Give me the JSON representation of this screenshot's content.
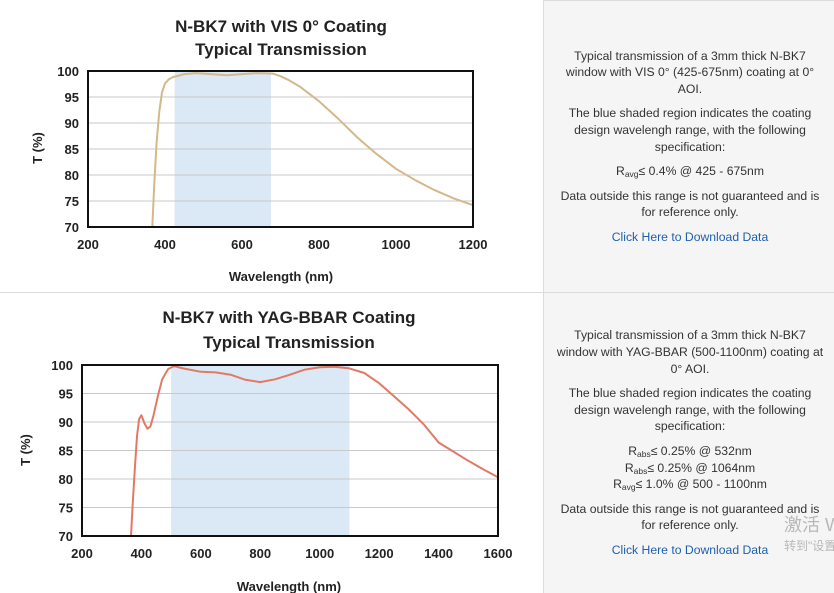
{
  "colors": {
    "band": "#dbe8f5",
    "grid": "#c9c9c9",
    "frame": "#111111",
    "link": "#1f5fb0",
    "vis_curve": "#d5b88a",
    "yag_curve": "#e07a66"
  },
  "sections": [
    {
      "chart_title_line1": "N-BK7 with VIS 0° Coating",
      "chart_title_line2": "Typical Transmission",
      "description": "Typical transmission of a 3mm thick N-BK7 window with VIS 0° (425-675nm) coating at 0° AOI.",
      "shaded_note": "The blue shaded region indicates the coating design wavelengh range, with the following specification:",
      "specs": [
        {
          "main": "R",
          "sub": "avg",
          "rest": "≤ 0.4% @ 425 - 675nm"
        }
      ],
      "disclaimer": "Data outside this range is not guaranteed and is for reference only.",
      "download_label": "Click Here to Download Data"
    },
    {
      "chart_title_line1": "N-BK7 with YAG-BBAR Coating",
      "chart_title_line2": "Typical Transmission",
      "description": "Typical transmission of a 3mm thick N-BK7 window with YAG-BBAR (500-1100nm) coating at 0° AOI.",
      "shaded_note": "The blue shaded region indicates the coating design wavelengh range, with the following specification:",
      "specs": [
        {
          "main": "R",
          "sub": "abs",
          "rest": "≤ 0.25% @ 532nm"
        },
        {
          "main": "R",
          "sub": "abs",
          "rest": "≤ 0.25% @ 1064nm"
        },
        {
          "main": "R",
          "sub": "avg",
          "rest": "≤ 1.0% @ 500 - 1100nm"
        }
      ],
      "disclaimer": "Data outside this range is not guaranteed and is for reference only.",
      "download_label": "Click Here to Download Data"
    }
  ],
  "watermark": {
    "line1": "激活 W",
    "line2": "转到\"设置"
  },
  "chart_data": [
    {
      "type": "line",
      "title": "N-BK7 with VIS 0° Coating Typical Transmission",
      "xlabel": "Wavelength (nm)",
      "ylabel": "T (%)",
      "xlim": [
        200,
        1200
      ],
      "ylim": [
        70,
        100
      ],
      "xticks": [
        200,
        400,
        600,
        800,
        1000,
        1200
      ],
      "yticks": [
        70,
        75,
        80,
        85,
        90,
        95,
        100
      ],
      "grid": true,
      "shaded_range": [
        425,
        675
      ],
      "series": [
        {
          "name": "VIS 0°",
          "x": [
            367,
            372,
            378,
            385,
            392,
            400,
            410,
            420,
            430,
            450,
            480,
            520,
            560,
            600,
            640,
            680,
            700,
            720,
            750,
            800,
            850,
            900,
            950,
            1000,
            1050,
            1100,
            1150,
            1200
          ],
          "y": [
            70,
            78,
            86,
            92,
            95.8,
            97.6,
            98.4,
            98.8,
            99.0,
            99.4,
            99.6,
            99.4,
            99.2,
            99.4,
            99.6,
            99.5,
            99.0,
            98.3,
            97.0,
            94.2,
            90.8,
            87.2,
            84.0,
            81.2,
            79.0,
            77.1,
            75.5,
            74.2
          ]
        }
      ]
    },
    {
      "type": "line",
      "title": "N-BK7 with YAG-BBAR Coating Typical Transmission",
      "xlabel": "Wavelength (nm)",
      "ylabel": "T (%)",
      "xlim": [
        200,
        1600
      ],
      "ylim": [
        70,
        100
      ],
      "xticks": [
        200,
        400,
        600,
        800,
        1000,
        1200,
        1400,
        1600
      ],
      "yticks": [
        70,
        75,
        80,
        85,
        90,
        95,
        100
      ],
      "grid": true,
      "shaded_range": [
        500,
        1100
      ],
      "series": [
        {
          "name": "YAG-BBAR",
          "x": [
            365,
            370,
            378,
            385,
            392,
            400,
            410,
            420,
            430,
            440,
            455,
            470,
            490,
            510,
            540,
            600,
            650,
            700,
            750,
            800,
            850,
            900,
            950,
            1000,
            1050,
            1100,
            1150,
            1200,
            1250,
            1300,
            1350,
            1400,
            1450,
            1500,
            1550,
            1600
          ],
          "y": [
            70,
            75,
            82,
            87.5,
            90.5,
            91.2,
            89.8,
            88.8,
            89.2,
            91,
            94.5,
            97.5,
            99.3,
            99.8,
            99.4,
            98.8,
            98.7,
            98.3,
            97.4,
            97.0,
            97.5,
            98.3,
            99.2,
            99.6,
            99.7,
            99.4,
            98.6,
            96.8,
            94.5,
            92.2,
            89.6,
            86.4,
            84.8,
            83.2,
            81.7,
            80.3
          ]
        }
      ]
    }
  ]
}
